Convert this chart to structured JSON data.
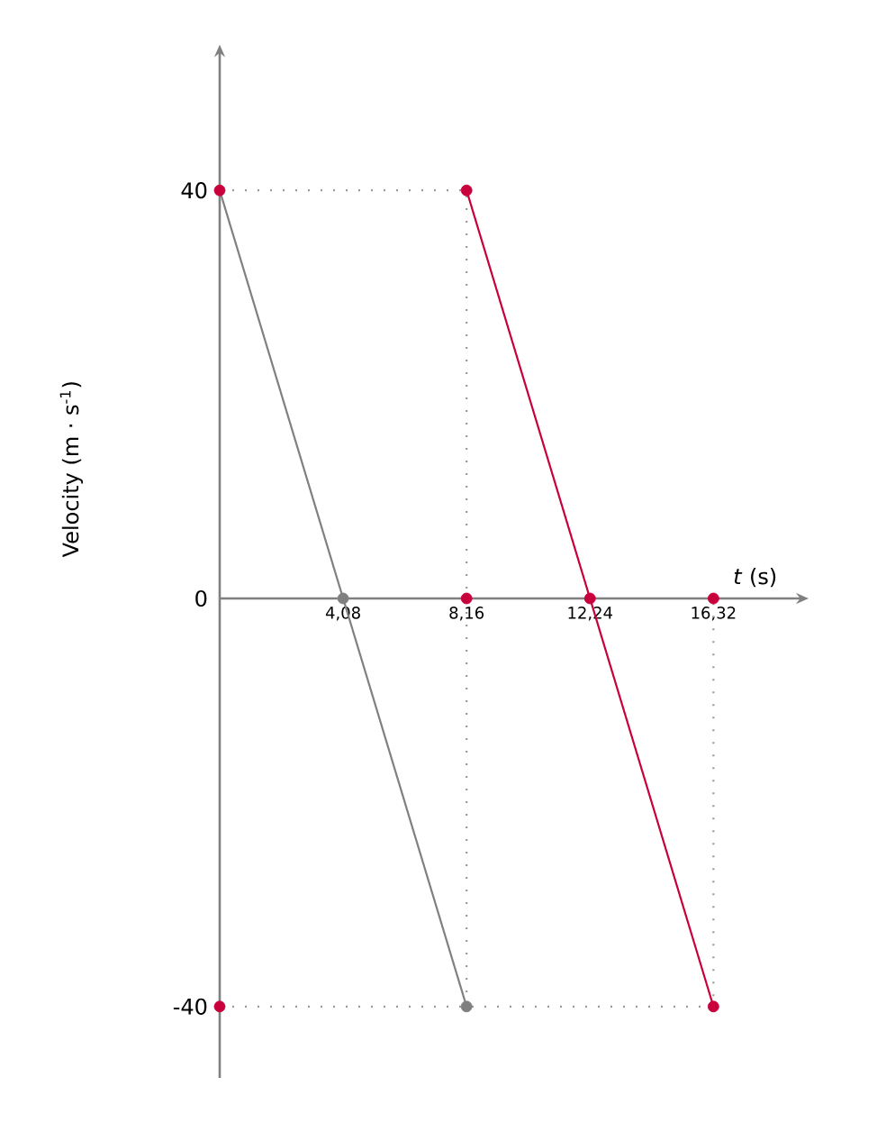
{
  "chart_data": {
    "type": "line",
    "xlabel": "*t* (s)",
    "ylabel": "Velocity (m · s$^{-1}$)",
    "xlim": [
      0,
      19.2
    ],
    "ylim": [
      -47,
      53.5
    ],
    "xticks": [
      {
        "value": 4.08,
        "label": "4,08"
      },
      {
        "value": 8.16,
        "label": "8,16"
      },
      {
        "value": 12.24,
        "label": "12,24"
      },
      {
        "value": 16.32,
        "label": "16,32"
      }
    ],
    "yticks": [
      -40,
      0,
      40
    ],
    "series": [
      {
        "color": "#808080",
        "x": [
          0,
          4.08,
          8.16
        ],
        "values": [
          40,
          0,
          -40
        ]
      },
      {
        "color": "#c8003c",
        "x": [
          8.16,
          12.24,
          16.32
        ],
        "values": [
          40,
          0,
          -40
        ]
      },
      {
        "type": "scatter",
        "color": "#808080",
        "x": [
          4.08,
          8.16
        ],
        "values": [
          0,
          -40
        ]
      },
      {
        "type": "scatter",
        "color": "#c8003c",
        "x": [
          0,
          0,
          8.16,
          12.24,
          16.32,
          16.32,
          8.16
        ],
        "values": [
          40,
          -40,
          0,
          0,
          0,
          -40,
          40
        ]
      },
      {
        "color": "#9a9a9a",
        "line_style": "dotted",
        "x": [
          0,
          8.16,
          8.16
        ],
        "values": [
          40,
          40,
          -40
        ]
      },
      {
        "color": "#9a9a9a",
        "line_style": "dotted",
        "x": [
          0,
          16.32,
          16.32
        ],
        "values": [
          -40,
          -40,
          0
        ]
      }
    ],
    "grid": false
  }
}
